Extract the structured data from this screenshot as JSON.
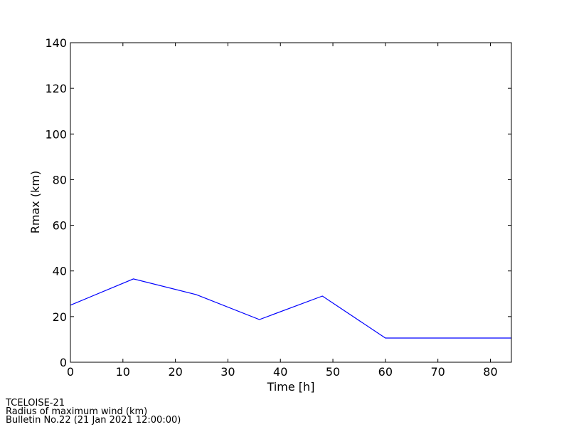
{
  "chart_data": {
    "type": "line",
    "xlabel": "Time [h]",
    "ylabel": "Rmax (km)",
    "x": [
      0,
      12,
      24,
      36,
      48,
      60,
      72,
      84
    ],
    "series": [
      {
        "name": "Rmax",
        "color": "#0000ff",
        "values": [
          25,
          36.5,
          29.6,
          18.7,
          29,
          10.6,
          10.6,
          10.6
        ]
      }
    ],
    "xlim": [
      0,
      84
    ],
    "xticks": [
      0,
      10,
      20,
      30,
      40,
      50,
      60,
      70,
      80
    ],
    "ylim": [
      0,
      140
    ],
    "yticks": [
      0,
      20,
      40,
      60,
      80,
      100,
      120,
      140
    ],
    "annotations": [
      "TCELOISE-21",
      "Radius of maximum wind (km)",
      "Bulletin No.22 (21 Jan 2021  12:00:00)"
    ]
  }
}
